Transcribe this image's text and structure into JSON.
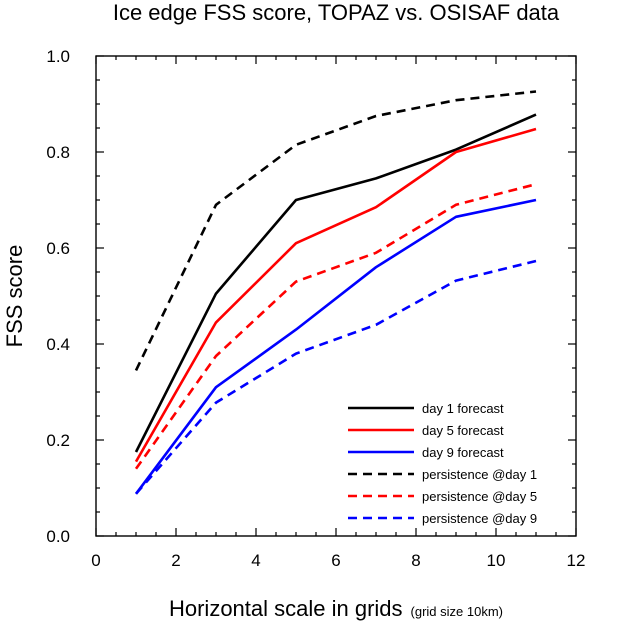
{
  "chart_data": {
    "type": "line",
    "title": "Ice edge FSS score, TOPAZ vs. OSISAF data",
    "xlabel": "Horizontal scale in grids",
    "xlabel_note": "(grid size 10km)",
    "ylabel": "FSS score",
    "xlim": [
      0,
      12
    ],
    "ylim": [
      0,
      1.0
    ],
    "x_ticks": [
      0,
      2,
      4,
      6,
      8,
      10,
      12
    ],
    "x_tick_labels": [
      "0",
      "2",
      "4",
      "6",
      "8",
      "10",
      "12"
    ],
    "y_ticks": [
      0,
      0.2,
      0.4,
      0.6,
      0.8,
      1.0
    ],
    "y_tick_labels": [
      "0.0",
      "0.2",
      "0.4",
      "0.6",
      "0.8",
      "1.0"
    ],
    "grid": false,
    "legend_position": "bottom-right",
    "x": [
      1,
      3,
      5,
      7,
      9,
      11
    ],
    "series": [
      {
        "name": "day 1 forecast",
        "color": "#000000",
        "dash": "solid",
        "values": [
          0.175,
          0.505,
          0.7,
          0.745,
          0.805,
          0.878
        ]
      },
      {
        "name": "day 5 forecast",
        "color": "#ff0000",
        "dash": "solid",
        "values": [
          0.155,
          0.445,
          0.61,
          0.685,
          0.8,
          0.848
        ]
      },
      {
        "name": "day 9 forecast",
        "color": "#0000ff",
        "dash": "solid",
        "values": [
          0.088,
          0.31,
          0.43,
          0.56,
          0.665,
          0.7
        ]
      },
      {
        "name": "persistence @day 1",
        "color": "#000000",
        "dash": "dashed",
        "values": [
          0.345,
          0.69,
          0.815,
          0.875,
          0.908,
          0.926
        ]
      },
      {
        "name": "persistence @day 5",
        "color": "#ff0000",
        "dash": "dashed",
        "values": [
          0.14,
          0.375,
          0.53,
          0.59,
          0.69,
          0.733
        ]
      },
      {
        "name": "persistence @day 9",
        "color": "#0000ff",
        "dash": "dashed",
        "values": [
          0.088,
          0.278,
          0.38,
          0.44,
          0.532,
          0.573
        ]
      }
    ]
  }
}
